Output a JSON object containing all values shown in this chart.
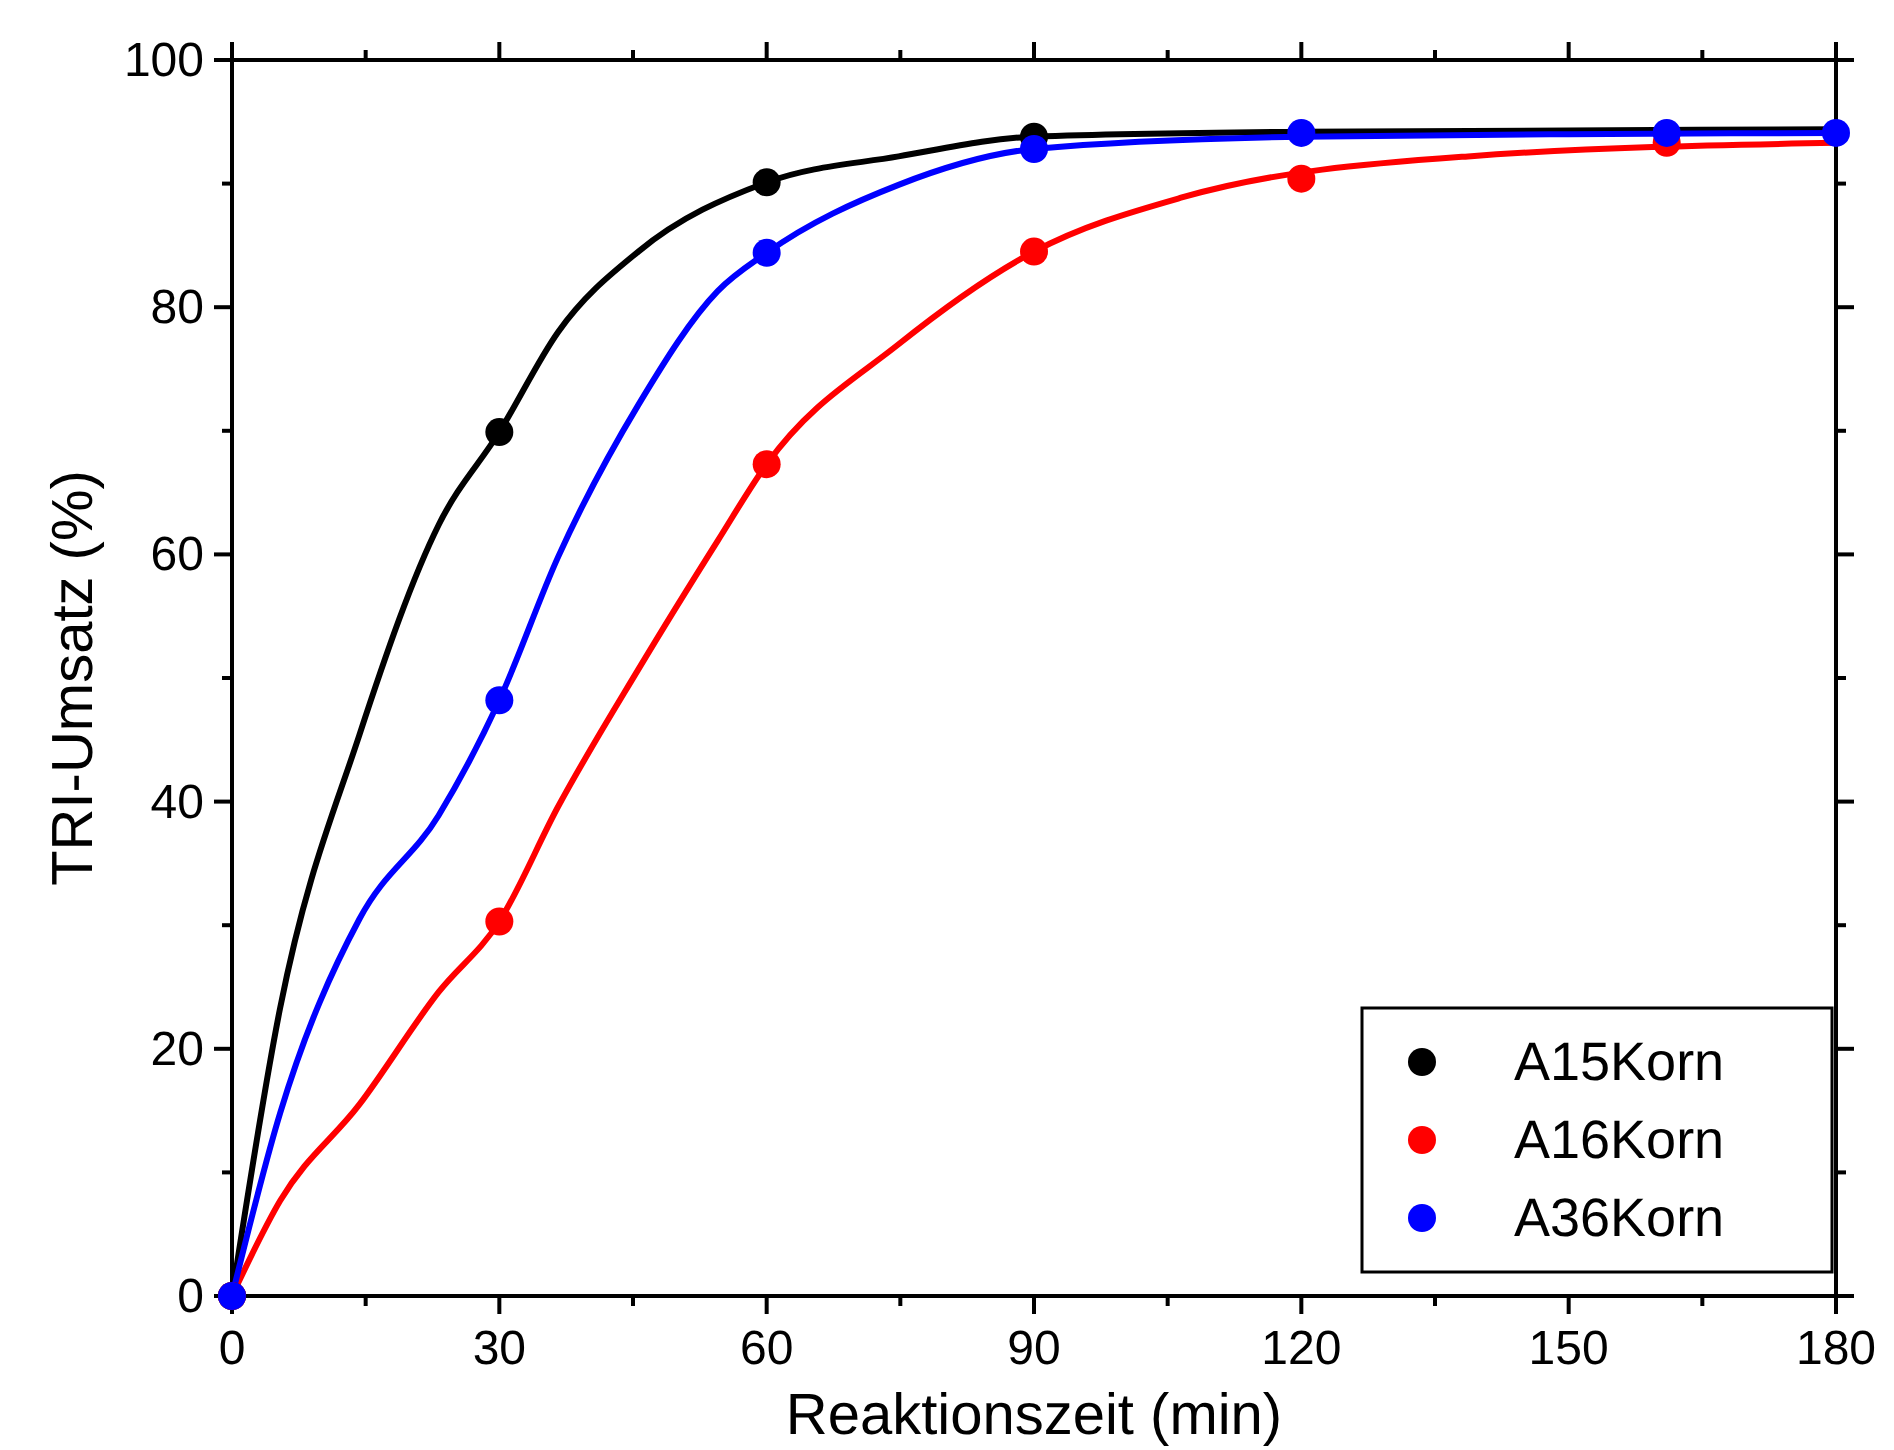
{
  "chart_data": {
    "type": "scatter",
    "xlabel": "Reaktionszeit (min)",
    "ylabel": "TRI-Umsatz (%)",
    "xlim": [
      0,
      180
    ],
    "ylim": [
      0,
      100
    ],
    "xticks": [
      0,
      30,
      60,
      90,
      120,
      150,
      180
    ],
    "yticks": [
      0,
      20,
      40,
      60,
      80,
      100
    ],
    "grid": false,
    "legend": "bottom right",
    "marker": "circle",
    "series": [
      {
        "name": "A15Korn",
        "color": "#000000",
        "x": [
          0,
          30,
          60,
          90
        ],
        "values": [
          0,
          69.9,
          90.1,
          93.8
        ]
      },
      {
        "name": "A16Korn",
        "color": "#ff0000",
        "x": [
          0,
          30,
          60,
          90,
          120,
          161
        ],
        "values": [
          0,
          30.3,
          67.3,
          84.5,
          90.4,
          93.3
        ]
      },
      {
        "name": "A36Korn",
        "color": "#0000ff",
        "x": [
          0,
          30,
          60,
          90,
          120,
          161,
          180
        ],
        "values": [
          0,
          48.2,
          84.4,
          92.8,
          94.1,
          94.1,
          94.1
        ]
      },
      {
        "type": "line",
        "marker": "none",
        "color": "#000000",
        "x": [
          0,
          5.4,
          14.3,
          23.2,
          30,
          36.6,
          45.6,
          60,
          74.8,
          90,
          120,
          150,
          180
        ],
        "values": [
          0,
          23.3,
          45.4,
          62.4,
          69.9,
          78,
          84.5,
          90.1,
          92.2,
          93.8,
          94.2,
          94.3,
          94.4
        ]
      },
      {
        "type": "line",
        "marker": "none",
        "color": "#ff0000",
        "x": [
          0,
          5.4,
          14.3,
          23.2,
          30,
          36.6,
          45.6,
          54.5,
          60,
          74.8,
          90,
          106.7,
          138.7,
          180
        ],
        "values": [
          0,
          7.7,
          15.5,
          24.6,
          30.3,
          39.6,
          50.7,
          61.1,
          67.3,
          77,
          84.5,
          88.9,
          92.2,
          93.3
        ]
      },
      {
        "type": "line",
        "marker": "none",
        "color": "#0000ff",
        "x": [
          0,
          5.4,
          14.3,
          23.2,
          30,
          36.6,
          45.6,
          54.5,
          60,
          74.8,
          90,
          120,
          150,
          180
        ],
        "values": [
          0,
          14.8,
          30.5,
          38.9,
          48.2,
          59.8,
          72.1,
          81.3,
          84.4,
          89.9,
          92.8,
          93.8,
          94.0,
          94.1
        ]
      }
    ]
  }
}
